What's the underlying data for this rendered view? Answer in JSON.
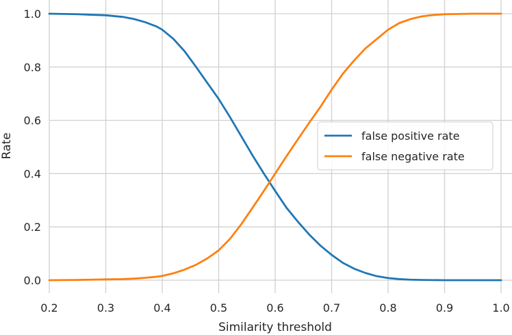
{
  "chart_data": {
    "type": "line",
    "title": "",
    "xlabel": "Similarity threshold",
    "ylabel": "Rate",
    "xlim": [
      0.2,
      1.0
    ],
    "ylim": [
      -0.05,
      1.0
    ],
    "xticks": [
      "0.2",
      "0.3",
      "0.4",
      "0.5",
      "0.6",
      "0.7",
      "0.8",
      "0.9",
      "1.0"
    ],
    "yticks": [
      "0.0",
      "0.2",
      "0.4",
      "0.6",
      "0.8",
      "1.0"
    ],
    "grid": true,
    "legend_position": "center-right",
    "series": [
      {
        "name": "false positive rate",
        "color": "#1f77b4",
        "x": [
          0.2,
          0.25,
          0.3,
          0.33,
          0.35,
          0.37,
          0.39,
          0.4,
          0.42,
          0.44,
          0.46,
          0.48,
          0.5,
          0.52,
          0.54,
          0.56,
          0.58,
          0.6,
          0.62,
          0.64,
          0.66,
          0.68,
          0.7,
          0.72,
          0.74,
          0.76,
          0.78,
          0.8,
          0.82,
          0.84,
          0.86,
          0.9,
          0.95,
          1.0
        ],
        "values": [
          1.0,
          0.998,
          0.994,
          0.988,
          0.98,
          0.968,
          0.952,
          0.94,
          0.905,
          0.858,
          0.8,
          0.74,
          0.68,
          0.612,
          0.54,
          0.468,
          0.4,
          0.335,
          0.272,
          0.22,
          0.172,
          0.13,
          0.095,
          0.065,
          0.043,
          0.027,
          0.015,
          0.008,
          0.004,
          0.002,
          0.001,
          0.0,
          0.0,
          0.0
        ]
      },
      {
        "name": "false negative rate",
        "color": "#ff7f0e",
        "x": [
          0.2,
          0.25,
          0.3,
          0.33,
          0.35,
          0.37,
          0.39,
          0.4,
          0.42,
          0.44,
          0.46,
          0.48,
          0.5,
          0.52,
          0.54,
          0.56,
          0.58,
          0.6,
          0.62,
          0.64,
          0.66,
          0.68,
          0.7,
          0.72,
          0.74,
          0.76,
          0.78,
          0.8,
          0.82,
          0.84,
          0.86,
          0.88,
          0.9,
          0.95,
          1.0
        ],
        "values": [
          0.0,
          0.001,
          0.003,
          0.004,
          0.006,
          0.009,
          0.013,
          0.016,
          0.026,
          0.04,
          0.058,
          0.082,
          0.112,
          0.155,
          0.21,
          0.272,
          0.335,
          0.4,
          0.465,
          0.528,
          0.59,
          0.65,
          0.715,
          0.775,
          0.825,
          0.87,
          0.905,
          0.94,
          0.965,
          0.98,
          0.99,
          0.995,
          0.998,
          1.0,
          1.0
        ]
      }
    ]
  }
}
